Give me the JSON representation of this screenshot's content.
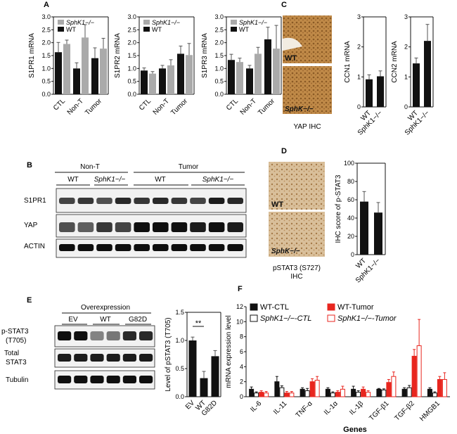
{
  "panel_letters": {
    "A": "A",
    "B": "B",
    "C": "C",
    "D": "D",
    "E": "E",
    "F": "F"
  },
  "colors": {
    "wt": "#111111",
    "ko": "#aaaaaa",
    "red": "#e8261f",
    "blot_bg": "#f2f2f2",
    "ihc": "#b07a3a"
  },
  "chart_data": [
    {
      "id": "A1",
      "type": "bar",
      "ylabel": "S1PR1 mRNA",
      "ylim": [
        0,
        3.0
      ],
      "yticks": [
        "0.0",
        "0.5",
        "1.0",
        "1.5",
        "2.0",
        "2.5",
        "3.0"
      ],
      "categories": [
        "CTL",
        "Non-T",
        "Tumor"
      ],
      "legend": [
        "SphK1−/−",
        "WT"
      ],
      "series": [
        {
          "name": "WT",
          "values": [
            1.63,
            1.0,
            1.4
          ],
          "errors": [
            0.38,
            0.22,
            0.4
          ]
        },
        {
          "name": "SphK1−/−",
          "values": [
            1.95,
            2.2,
            1.77
          ],
          "errors": [
            0.15,
            0.5,
            0.4
          ]
        }
      ]
    },
    {
      "id": "A2",
      "type": "bar",
      "ylabel": "S1PR2 mRNA",
      "ylim": [
        0,
        3.0
      ],
      "yticks": [
        "0.0",
        "0.5",
        "1.0",
        "1.5",
        "2.0",
        "2.5",
        "3.0"
      ],
      "categories": [
        "CTL",
        "Non-T",
        "Tumor"
      ],
      "legend": [
        "SphK1−/−",
        "WT"
      ],
      "series": [
        {
          "name": "WT",
          "values": [
            0.92,
            1.0,
            1.57
          ],
          "errors": [
            0.1,
            0.12,
            0.3
          ]
        },
        {
          "name": "SphK1−/−",
          "values": [
            0.8,
            1.12,
            1.52
          ],
          "errors": [
            0.08,
            0.22,
            0.45
          ]
        }
      ]
    },
    {
      "id": "A3",
      "type": "bar",
      "ylabel": "S1PR3 mRNA",
      "ylim": [
        0,
        3.0
      ],
      "yticks": [
        "0.0",
        "0.5",
        "1.0",
        "1.5",
        "2.0",
        "2.5",
        "3.0"
      ],
      "categories": [
        "CTL",
        "Non-T",
        "Tumor"
      ],
      "legend": [
        "SphK1−/−",
        "WT"
      ],
      "series": [
        {
          "name": "WT",
          "values": [
            1.33,
            1.0,
            2.13
          ],
          "errors": [
            0.22,
            0.12,
            0.47
          ]
        },
        {
          "name": "SphK1−/−",
          "values": [
            1.25,
            1.57,
            1.77
          ],
          "errors": [
            0.15,
            0.25,
            0.9
          ]
        }
      ]
    },
    {
      "id": "C1",
      "type": "bar",
      "ylabel": "CCN1 mRNA",
      "ylim": [
        0,
        3
      ],
      "yticks": [
        "0",
        "1",
        "2",
        "3"
      ],
      "categories": [
        "WT",
        "SphK1−/−"
      ],
      "values": [
        0.92,
        1.02
      ],
      "errors": [
        0.15,
        0.18
      ]
    },
    {
      "id": "C2",
      "type": "bar",
      "ylabel": "CCN2 mRNA",
      "ylim": [
        0,
        3
      ],
      "yticks": [
        "0",
        "1",
        "2",
        "3"
      ],
      "categories": [
        "WT",
        "SphK1−/−"
      ],
      "values": [
        1.45,
        2.2
      ],
      "errors": [
        0.18,
        0.55
      ]
    },
    {
      "id": "D",
      "type": "bar",
      "ylabel": "IHC score of p-STAT3",
      "ylim": [
        0,
        100
      ],
      "yticks": [
        "0",
        "20",
        "40",
        "60",
        "80",
        "100"
      ],
      "categories": [
        "WT",
        "SphK1−/−"
      ],
      "values": [
        58,
        46
      ],
      "errors": [
        11,
        11
      ]
    },
    {
      "id": "E",
      "type": "bar",
      "ylabel": "Level of pSTAT3 (T705)",
      "ylim": [
        0,
        1.5
      ],
      "yticks": [
        "0.0",
        "0.5",
        "1.0",
        "1.5"
      ],
      "categories": [
        "EV",
        "WT",
        "G82D"
      ],
      "values": [
        1.0,
        0.33,
        0.72
      ],
      "errors": [
        0.06,
        0.12,
        0.1
      ],
      "annotation": "**"
    },
    {
      "id": "F",
      "type": "bar",
      "ylabel": "mRNA expression level",
      "xlabel": "Genes",
      "ylim": [
        0,
        12
      ],
      "yticks": [
        "0",
        "2",
        "4",
        "6",
        "8",
        "10",
        "12"
      ],
      "categories": [
        "IL-6",
        "IL-11",
        "TNF-α",
        "IL-1α",
        "IL-1β",
        "TGF-β1",
        "TGF-β2",
        "HMGB1"
      ],
      "legend": [
        "WT-CTL",
        "SphK1−/−-CTL",
        "WT-Tumor",
        "SphK1−/−-Tumor"
      ],
      "series": [
        {
          "name": "WT-CTL",
          "values": [
            1.0,
            2.0,
            1.0,
            1.0,
            1.0,
            1.0,
            1.0,
            1.0
          ],
          "errors": [
            0.3,
            0.7,
            0.2,
            0.2,
            0.4,
            0.1,
            0.2,
            0.2
          ]
        },
        {
          "name": "SphK1−/−-CTL",
          "values": [
            0.5,
            1.2,
            0.8,
            0.5,
            0.6,
            0.9,
            1.2,
            0.5
          ],
          "errors": [
            0.15,
            0.25,
            0.3,
            0.15,
            0.2,
            0.15,
            0.3,
            0.15
          ]
        },
        {
          "name": "WT-Tumor",
          "values": [
            0.6,
            0.5,
            2.0,
            0.6,
            1.0,
            1.9,
            5.4,
            2.3
          ],
          "errors": [
            0.2,
            0.2,
            0.4,
            0.2,
            0.3,
            0.4,
            0.9,
            0.4
          ]
        },
        {
          "name": "SphK1−/−-Tumor",
          "values": [
            0.5,
            0.5,
            2.2,
            1.0,
            0.6,
            2.7,
            6.8,
            2.3
          ],
          "errors": [
            0.2,
            0.2,
            0.5,
            0.4,
            0.2,
            0.6,
            3.5,
            0.9
          ]
        }
      ]
    }
  ],
  "blot_B": {
    "headers": [
      "Non-T",
      "Tumor"
    ],
    "subheaders": [
      "WT",
      "SphK1−/−",
      "WT",
      "SphK1−/−"
    ],
    "rows": [
      "S1PR1",
      "YAP",
      "ACTIN"
    ]
  },
  "blot_E": {
    "header": "Overexpression",
    "subheaders": [
      "EV",
      "WT",
      "G82D"
    ],
    "rows": [
      "p-STAT3",
      "(T705)",
      "Total",
      "STAT3",
      "Tubulin"
    ]
  },
  "ihc_C": {
    "labels": [
      "WT",
      "SphK−/−"
    ],
    "caption": "YAP IHC"
  },
  "ihc_D": {
    "labels": [
      "WT",
      "SphK−/−"
    ],
    "caption1": "pSTAT3 (S727)",
    "caption2": "IHC"
  }
}
